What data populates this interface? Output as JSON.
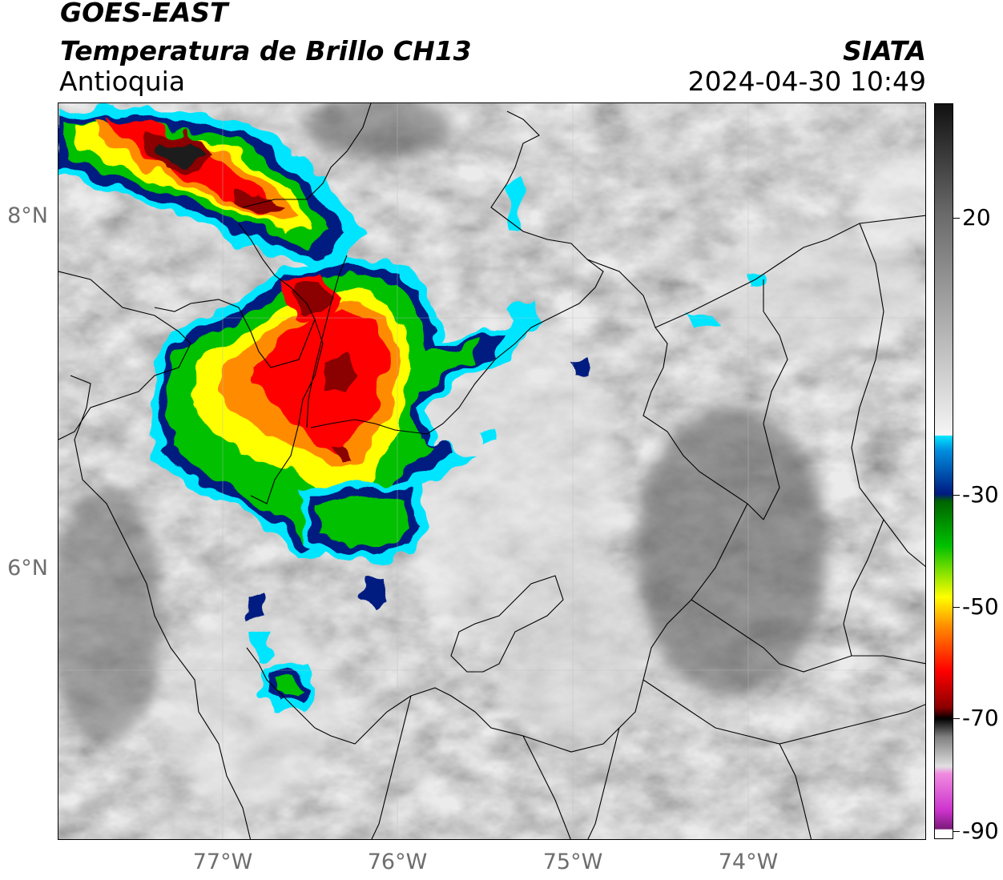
{
  "title": {
    "satellite": "GOES-EAST",
    "product": "Temperatura de Brillo CH13",
    "region": "Antioquia",
    "organization": "SIATA",
    "datetime": "2024-04-30 10:49"
  },
  "axes": {
    "latitude_labels": [
      "8°N",
      "6°N"
    ],
    "longitude_labels": [
      "77°W",
      "76°W",
      "75°W",
      "74°W"
    ]
  },
  "colorbar": {
    "labels": [
      "20",
      "-30",
      "-50",
      "-70",
      "-90"
    ],
    "range": [
      -90,
      40
    ],
    "colors": {
      "black": "#000000",
      "dark_red": "#8b0000",
      "red": "#ff0000",
      "orange": "#ff8c00",
      "yellow": "#ffff00",
      "green": "#00c000",
      "dark_green": "#006400",
      "navy": "#001a80",
      "cyan": "#00e5ff",
      "magenta": "#cc33cc",
      "purple": "#7a1a7a"
    }
  }
}
